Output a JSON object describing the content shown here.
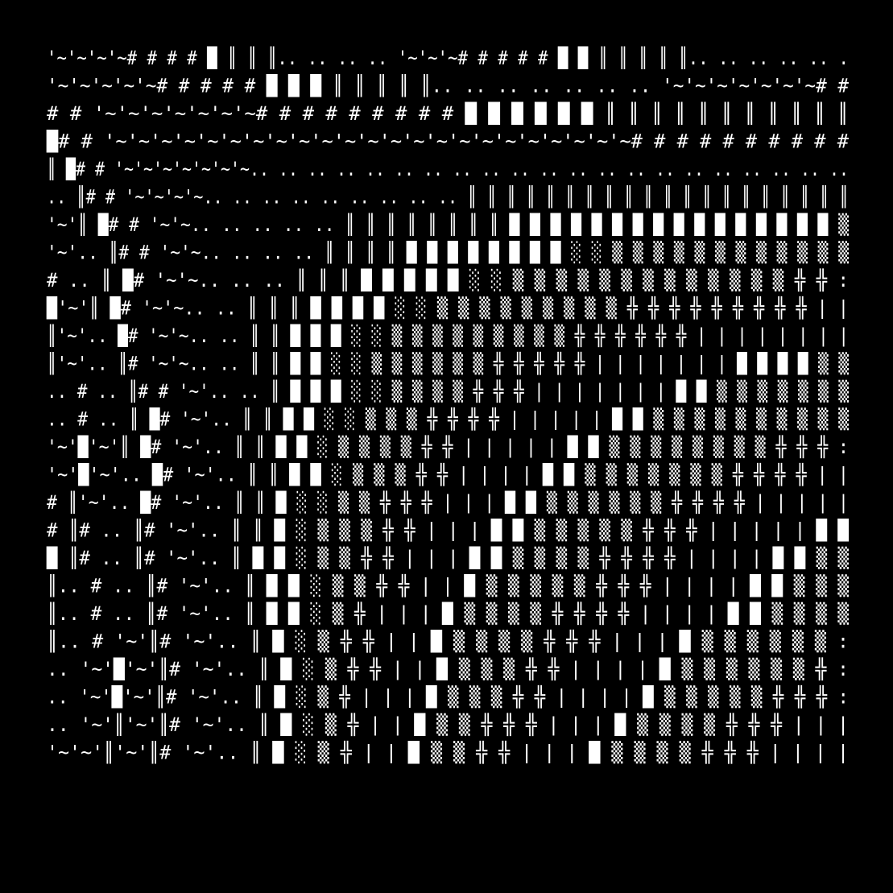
{
  "artwork": {
    "kind": "ascii-art-pattern",
    "background_color": "#000000",
    "glyph_color": "#ffffff",
    "accent_color": "#f2c6e0",
    "block_color": "#a08890",
    "glyph_set": [
      "'~'",
      "#",
      "█",
      "║",
      "..",
      "╬",
      "|",
      "░",
      "▒",
      "▓"
    ],
    "rows": [
      "'~'~'~'~# # # # █ ║ ║ ║.. .. .. .. '~'~'~# # # # # █ █ ║ ║ ║ ║ ║.. .. .. .. .. .",
      "'~'~'~'~'~# # # # # █ █ █ ║ ║ ║ ║ ║.. .. .. .. .. .. .. '~'~'~'~'~'~'~# #",
      "# # '~'~'~'~'~'~'~# # # # # # # # # █ █ █ █ █ █ ║ ║ ║ ║ ║ ║ ║ ║ ║ ║ ║",
      "█# # '~'~'~'~'~'~'~'~'~'~'~'~'~'~'~'~'~'~'~'~'~'~'~# # # # # # # # # #",
      " ║ █# # '~'~'~'~'~'~'~.. .. .. .. .. .. .. .. .. .. .. .. .. .. .. .. .. .. .. .. ..",
      ".. ║# # '~'~'~'~.. .. .. .. .. .. .. .. .. ║ ║ ║ ║ ║ ║ ║ ║ ║ ║ ║ ║ ║ ║ ║ ║ ║ ║ ║ ║",
      "'~'║ █# # '~'~.. .. .. .. .. ║ ║ ║ ║ ║ ║ ║ ║ █ █ █ █ █ █ █ █ █ █ █ █ █ █ █ █ ▒",
      "'~'.. ║# # '~'~.. .. .. .. ║ ║ ║ ║ █ █ █ █ █ █ █ █ ░ ░ ▒ ▒ ▒ ▒ ▒ ▒ ▒ ▒ ▒ ▒ ▒ ▒",
      "# .. ║ █# '~'~.. .. .. ║ ║ ║ █ █ █ █ █ ░ ░ ▒ ▒ ▒ ▒ ▒ ▒ ▒ ▒ ▒ ▒ ▒ ▒ ▒ ╬ ╬ :",
      "█'~'║ █# '~'~.. .. ║ ║ ║ █ █ █ █ ░ ░ ▒ ▒ ▒ ▒ ▒ ▒ ▒ ▒ ▒ ╬ ╬ ╬ ╬ ╬ ╬ ╬ ╬ ╬ | |",
      " ║'~'.. █# '~'~.. .. ║ ║ █ █ █ ░ ░ ▒ ▒ ▒ ▒ ▒ ▒ ▒ ▒ ▒ ╬ ╬ ╬ ╬ ╬ ╬ | | | | | | | |",
      " ║'~'.. ║# '~'~.. .. ║ ║ █ █ ░ ░ ▒ ▒ ▒ ▒ ▒ ▒ ╬ ╬ ╬ ╬ ╬ | | | | | | | █ █ █ █ ▒ ▒",
      ".. # .. ║# # '~'.. .. ║ █ █ █ ░ ░ ▒ ▒ ▒ ▒ ╬ ╬ ╬ | | | | | | | █ █ ▒ ▒ ▒ ▒ ▒ ▒ ▒",
      ".. # .. ║ █# '~'.. ║ ║ █ █ ░ ░ ▒ ▒ ▒ ╬ ╬ ╬ ╬ | | | | | █ █ ▒ ▒ ▒ ▒ ▒ ▒ ▒ ▒ ▒ ▒",
      "'~'█'~'║ █# '~'.. ║ ║ █ █ ░ ▒ ▒ ▒ ▒ ╬ ╬ | | | | | █ █ ▒ ▒ ▒ ▒ ▒ ▒ ▒ ▒ ╬ ╬ ╬ :",
      "'~'█'~'.. █# '~'.. ║ ║ █ █ ░ ▒ ▒ ▒ ╬ ╬ | | | | █ █ ▒ ▒ ▒ ▒ ▒ ▒ ▒ ╬ ╬ ╬ ╬ | |",
      "# ║'~'.. █# '~'.. ║ ║ █ ░ ░ ▒ ▒ ╬ ╬ ╬ | | | █ █ ▒ ▒ ▒ ▒ ▒ ▒ ╬ ╬ ╬ ╬ | | | | |",
      "# ║# .. ║# '~'.. ║ ║ █ ░ ▒ ▒ ▒ ╬ ╬ | | | █ █ ▒ ▒ ▒ ▒ ▒ ╬ ╬ ╬ | | | | | █ █",
      "█ ║# .. ║# '~'.. ║ █ █ ░ ▒ ▒ ╬ ╬ | | | █ █ ▒ ▒ ▒ ▒ ╬ ╬ ╬ ╬ | | | | █ █ ▒ ▒",
      " ║.. # .. ║# '~'.. ║ █ █ ░ ▒ ▒ ╬ ╬ | | █ ▒ ▒ ▒ ▒ ▒ ╬ ╬ ╬ | | | | █ █ ▒ ▒ ▒",
      " ║.. # .. ║# '~'.. ║ █ █ ░ ▒ ╬ | | | █ ▒ ▒ ▒ ▒ ╬ ╬ ╬ ╬ | | | | █ █ ▒ ▒ ▒ ▒",
      " ║.. # '~'║# '~'.. ║ █ ░ ▒ ╬ ╬ | | █ ▒ ▒ ▒ ▒ ╬ ╬ ╬ | | | █ ▒ ▒ ▒ ▒ ▒ ▒ :",
      ".. '~'█'~'║# '~'.. ║ █ ░ ▒ ╬ ╬ | | █ ▒ ▒ ▒ ╬ ╬ | | | | █ ▒ ▒ ▒ ▒ ▒ ▒ ╬ :",
      ".. '~'█'~'║# '~'.. ║ █ ░ ▒ ╬ | | | █ ▒ ▒ ▒ ╬ ╬ | | | | █ ▒ ▒ ▒ ▒ ▒ ╬ ╬ ╬ :",
      ".. '~'║'~'║# '~'.. ║ █ ░ ▒ ╬ | | █ ▒ ▒ ╬ ╬ ╬ | | | █ ▒ ▒ ▒ ▒ ╬ ╬ ╬ | | |",
      "'~'~'║'~'║# '~'.. ║ █ ░ ▒ ╬ | | █ ▒ ▒ ╬ ╬ | | | █ ▒ ▒ ▒ ▒ ╬ ╬ ╬ | | | |"
    ]
  }
}
